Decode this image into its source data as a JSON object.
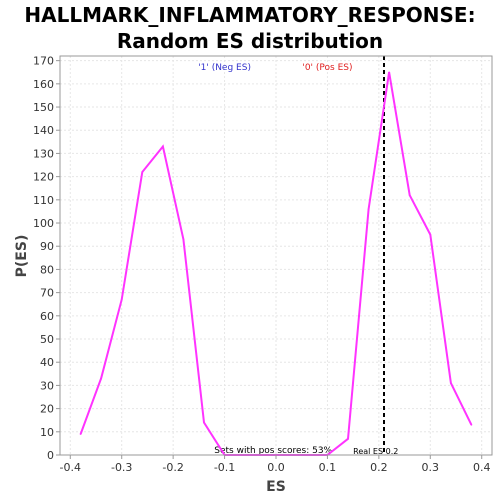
{
  "chart_data": {
    "type": "line",
    "title": [
      "HALLMARK_INFLAMMATORY_RESPONSE:",
      "Random ES distribution"
    ],
    "xlabel": "ES",
    "ylabel": "P(ES)",
    "xlim": [
      -0.42,
      0.42
    ],
    "ylim": [
      0,
      172
    ],
    "xticks": [
      "-0.4",
      "-0.3",
      "-0.2",
      "-0.1",
      "0.0",
      "0.1",
      "0.2",
      "0.3",
      "0.4"
    ],
    "yticks": [
      "0",
      "10",
      "20",
      "30",
      "40",
      "50",
      "60",
      "70",
      "80",
      "90",
      "100",
      "110",
      "120",
      "130",
      "140",
      "150",
      "160",
      "170"
    ],
    "grid": true,
    "series": [
      {
        "color": "#ff33ff",
        "x": [
          -0.38,
          -0.34,
          -0.3,
          -0.26,
          -0.22,
          -0.18,
          -0.14,
          -0.1,
          -0.06,
          0.02,
          0.1,
          0.14,
          0.18,
          0.22,
          0.26,
          0.3,
          0.34,
          0.38
        ],
        "y": [
          9,
          33,
          67,
          122,
          133,
          93,
          14,
          0,
          0,
          0,
          0,
          7,
          106,
          165,
          112,
          95,
          31,
          13
        ]
      }
    ],
    "real_es": 0.21,
    "annotations": {
      "neg_label": "'1' (Neg ES)",
      "pos_label": "'0' (Pos ES)",
      "pos_scores_text": "Sets with pos scores: 53%",
      "real_es_text": "Real ES 0.2"
    },
    "colors": {
      "neg_label": "#3333cc",
      "pos_label": "#e02020",
      "real_es_line": "#000000",
      "grid": "#e6e6e6"
    }
  }
}
